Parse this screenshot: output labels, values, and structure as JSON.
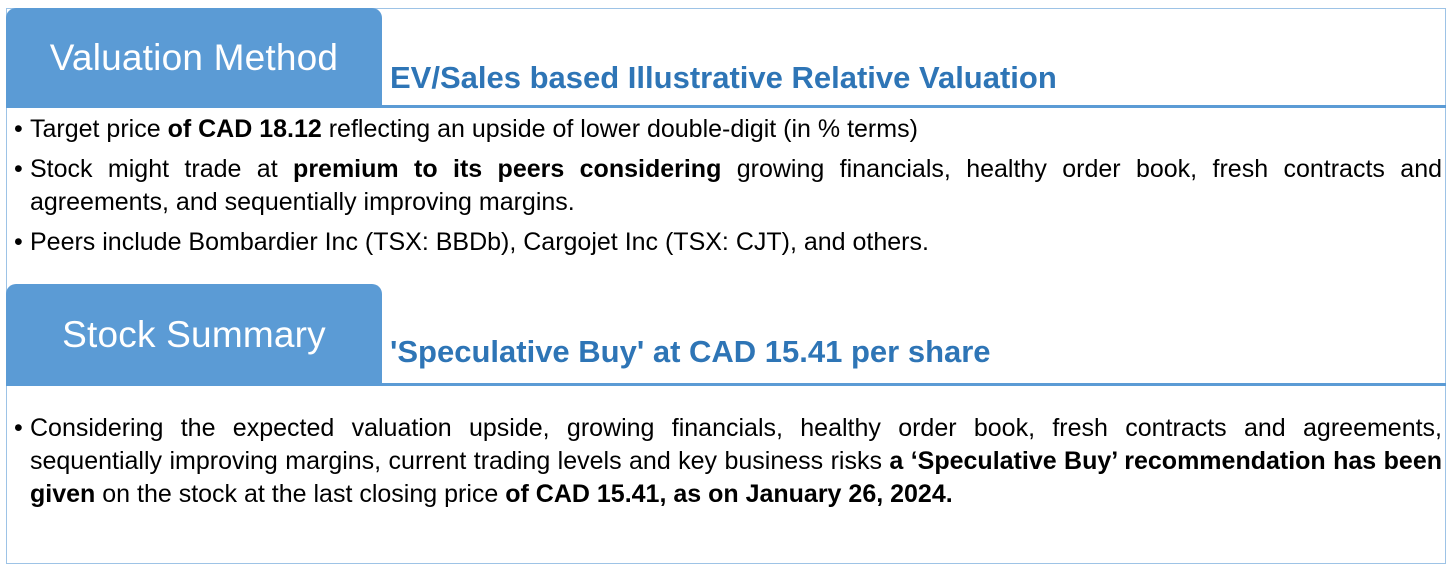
{
  "valuation": {
    "tab_label": "Valuation Method",
    "subtitle": "EV/Sales based Illustrative Relative Valuation",
    "bullets": [
      {
        "pre": "Target price ",
        "bold": "of CAD 18.12",
        "post": " reflecting an upside of lower double-digit (in % terms)"
      },
      {
        "pre": "Stock might trade at ",
        "bold": "premium to its peers considering",
        "post": " growing financials, healthy order book, fresh contracts and agreements, and sequentially improving margins."
      },
      {
        "text": "Peers include Bombardier Inc (TSX: BBDb), Cargojet Inc (TSX: CJT), and others."
      }
    ]
  },
  "summary": {
    "tab_label": "Stock Summary",
    "subtitle": "'Speculative Buy' at CAD 15.41 per share",
    "paragraph": {
      "pre": "Considering the expected valuation upside, growing financials, healthy order book, fresh contracts and agreements, sequentially improving margins, current trading levels and key business risks ",
      "bold1": "a ‘Speculative Buy’ recommendation has been given",
      "mid": " on the stock at the last closing price ",
      "bold2": "of CAD 15.41, as on January 26, 2024."
    }
  },
  "colors": {
    "tab_fill": "#5b9bd5",
    "subtitle_text": "#2e75b6",
    "border": "#9dc3e6"
  }
}
